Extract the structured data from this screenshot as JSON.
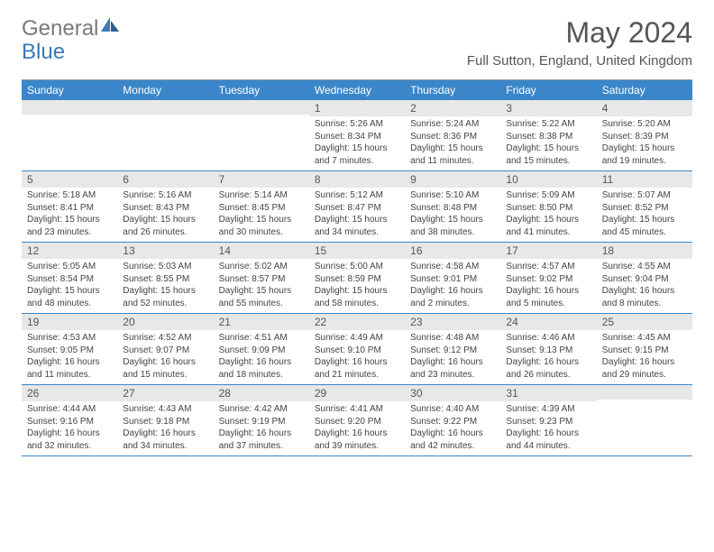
{
  "logo": {
    "text1": "General",
    "text2": "Blue"
  },
  "title": "May 2024",
  "location": "Full Sutton, England, United Kingdom",
  "weekdays": [
    "Sunday",
    "Monday",
    "Tuesday",
    "Wednesday",
    "Thursday",
    "Friday",
    "Saturday"
  ],
  "colors": {
    "header_bar": "#3a86c8",
    "header_text": "#ffffff",
    "daynum_bg": "#e8e8e8",
    "body_text": "#444444",
    "week_border": "#3a86c8"
  },
  "weeks": [
    [
      {
        "day": "",
        "sunrise": "",
        "sunset": "",
        "daylight": ""
      },
      {
        "day": "",
        "sunrise": "",
        "sunset": "",
        "daylight": ""
      },
      {
        "day": "",
        "sunrise": "",
        "sunset": "",
        "daylight": ""
      },
      {
        "day": "1",
        "sunrise": "Sunrise: 5:26 AM",
        "sunset": "Sunset: 8:34 PM",
        "daylight": "Daylight: 15 hours and 7 minutes."
      },
      {
        "day": "2",
        "sunrise": "Sunrise: 5:24 AM",
        "sunset": "Sunset: 8:36 PM",
        "daylight": "Daylight: 15 hours and 11 minutes."
      },
      {
        "day": "3",
        "sunrise": "Sunrise: 5:22 AM",
        "sunset": "Sunset: 8:38 PM",
        "daylight": "Daylight: 15 hours and 15 minutes."
      },
      {
        "day": "4",
        "sunrise": "Sunrise: 5:20 AM",
        "sunset": "Sunset: 8:39 PM",
        "daylight": "Daylight: 15 hours and 19 minutes."
      }
    ],
    [
      {
        "day": "5",
        "sunrise": "Sunrise: 5:18 AM",
        "sunset": "Sunset: 8:41 PM",
        "daylight": "Daylight: 15 hours and 23 minutes."
      },
      {
        "day": "6",
        "sunrise": "Sunrise: 5:16 AM",
        "sunset": "Sunset: 8:43 PM",
        "daylight": "Daylight: 15 hours and 26 minutes."
      },
      {
        "day": "7",
        "sunrise": "Sunrise: 5:14 AM",
        "sunset": "Sunset: 8:45 PM",
        "daylight": "Daylight: 15 hours and 30 minutes."
      },
      {
        "day": "8",
        "sunrise": "Sunrise: 5:12 AM",
        "sunset": "Sunset: 8:47 PM",
        "daylight": "Daylight: 15 hours and 34 minutes."
      },
      {
        "day": "9",
        "sunrise": "Sunrise: 5:10 AM",
        "sunset": "Sunset: 8:48 PM",
        "daylight": "Daylight: 15 hours and 38 minutes."
      },
      {
        "day": "10",
        "sunrise": "Sunrise: 5:09 AM",
        "sunset": "Sunset: 8:50 PM",
        "daylight": "Daylight: 15 hours and 41 minutes."
      },
      {
        "day": "11",
        "sunrise": "Sunrise: 5:07 AM",
        "sunset": "Sunset: 8:52 PM",
        "daylight": "Daylight: 15 hours and 45 minutes."
      }
    ],
    [
      {
        "day": "12",
        "sunrise": "Sunrise: 5:05 AM",
        "sunset": "Sunset: 8:54 PM",
        "daylight": "Daylight: 15 hours and 48 minutes."
      },
      {
        "day": "13",
        "sunrise": "Sunrise: 5:03 AM",
        "sunset": "Sunset: 8:55 PM",
        "daylight": "Daylight: 15 hours and 52 minutes."
      },
      {
        "day": "14",
        "sunrise": "Sunrise: 5:02 AM",
        "sunset": "Sunset: 8:57 PM",
        "daylight": "Daylight: 15 hours and 55 minutes."
      },
      {
        "day": "15",
        "sunrise": "Sunrise: 5:00 AM",
        "sunset": "Sunset: 8:59 PM",
        "daylight": "Daylight: 15 hours and 58 minutes."
      },
      {
        "day": "16",
        "sunrise": "Sunrise: 4:58 AM",
        "sunset": "Sunset: 9:01 PM",
        "daylight": "Daylight: 16 hours and 2 minutes."
      },
      {
        "day": "17",
        "sunrise": "Sunrise: 4:57 AM",
        "sunset": "Sunset: 9:02 PM",
        "daylight": "Daylight: 16 hours and 5 minutes."
      },
      {
        "day": "18",
        "sunrise": "Sunrise: 4:55 AM",
        "sunset": "Sunset: 9:04 PM",
        "daylight": "Daylight: 16 hours and 8 minutes."
      }
    ],
    [
      {
        "day": "19",
        "sunrise": "Sunrise: 4:53 AM",
        "sunset": "Sunset: 9:05 PM",
        "daylight": "Daylight: 16 hours and 11 minutes."
      },
      {
        "day": "20",
        "sunrise": "Sunrise: 4:52 AM",
        "sunset": "Sunset: 9:07 PM",
        "daylight": "Daylight: 16 hours and 15 minutes."
      },
      {
        "day": "21",
        "sunrise": "Sunrise: 4:51 AM",
        "sunset": "Sunset: 9:09 PM",
        "daylight": "Daylight: 16 hours and 18 minutes."
      },
      {
        "day": "22",
        "sunrise": "Sunrise: 4:49 AM",
        "sunset": "Sunset: 9:10 PM",
        "daylight": "Daylight: 16 hours and 21 minutes."
      },
      {
        "day": "23",
        "sunrise": "Sunrise: 4:48 AM",
        "sunset": "Sunset: 9:12 PM",
        "daylight": "Daylight: 16 hours and 23 minutes."
      },
      {
        "day": "24",
        "sunrise": "Sunrise: 4:46 AM",
        "sunset": "Sunset: 9:13 PM",
        "daylight": "Daylight: 16 hours and 26 minutes."
      },
      {
        "day": "25",
        "sunrise": "Sunrise: 4:45 AM",
        "sunset": "Sunset: 9:15 PM",
        "daylight": "Daylight: 16 hours and 29 minutes."
      }
    ],
    [
      {
        "day": "26",
        "sunrise": "Sunrise: 4:44 AM",
        "sunset": "Sunset: 9:16 PM",
        "daylight": "Daylight: 16 hours and 32 minutes."
      },
      {
        "day": "27",
        "sunrise": "Sunrise: 4:43 AM",
        "sunset": "Sunset: 9:18 PM",
        "daylight": "Daylight: 16 hours and 34 minutes."
      },
      {
        "day": "28",
        "sunrise": "Sunrise: 4:42 AM",
        "sunset": "Sunset: 9:19 PM",
        "daylight": "Daylight: 16 hours and 37 minutes."
      },
      {
        "day": "29",
        "sunrise": "Sunrise: 4:41 AM",
        "sunset": "Sunset: 9:20 PM",
        "daylight": "Daylight: 16 hours and 39 minutes."
      },
      {
        "day": "30",
        "sunrise": "Sunrise: 4:40 AM",
        "sunset": "Sunset: 9:22 PM",
        "daylight": "Daylight: 16 hours and 42 minutes."
      },
      {
        "day": "31",
        "sunrise": "Sunrise: 4:39 AM",
        "sunset": "Sunset: 9:23 PM",
        "daylight": "Daylight: 16 hours and 44 minutes."
      },
      {
        "day": "",
        "sunrise": "",
        "sunset": "",
        "daylight": ""
      }
    ]
  ]
}
